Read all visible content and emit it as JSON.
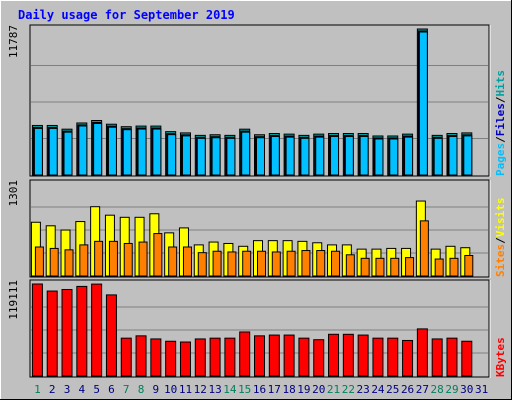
{
  "chart_data": {
    "type": "bar",
    "title": "Daily usage for September 2019",
    "categories": [
      "1",
      "2",
      "3",
      "4",
      "5",
      "6",
      "7",
      "8",
      "9",
      "10",
      "11",
      "12",
      "13",
      "14",
      "15",
      "16",
      "17",
      "18",
      "19",
      "20",
      "21",
      "22",
      "23",
      "24",
      "25",
      "26",
      "27",
      "28",
      "29",
      "30",
      "31"
    ],
    "weekend_days": [
      "1",
      "7",
      "8",
      "14",
      "15",
      "21",
      "22",
      "28",
      "29"
    ],
    "panels": [
      {
        "id": "top",
        "y_max_label": "11787",
        "ylim": [
          0,
          11787
        ],
        "series": [
          {
            "name": "Hits",
            "color": "#00a0a0",
            "values": [
              4000,
              4000,
              3700,
              4200,
              4400,
              4100,
              3900,
              3950,
              3950,
              3500,
              3400,
              3200,
              3250,
              3200,
              3700,
              3250,
              3350,
              3300,
              3200,
              3300,
              3350,
              3350,
              3350,
              3150,
              3150,
              3300,
              11787,
              3200,
              3350,
              3400,
              0
            ]
          },
          {
            "name": "Files",
            "color": "#0000c0",
            "values": [
              4000,
              4000,
              3700,
              4200,
              4400,
              4100,
              3900,
              3950,
              3950,
              3500,
              3400,
              3200,
              3250,
              3200,
              3700,
              3250,
              3350,
              3300,
              3200,
              3300,
              3350,
              3350,
              3350,
              3150,
              3150,
              3300,
              11787,
              3200,
              3350,
              3400,
              0
            ]
          },
          {
            "name": "Pages",
            "color": "#00c0ff",
            "values": [
              4000,
              4000,
              3700,
              4200,
              4400,
              4100,
              3900,
              3950,
              3950,
              3500,
              3400,
              3200,
              3250,
              3200,
              3700,
              3250,
              3350,
              3300,
              3200,
              3300,
              3350,
              3350,
              3350,
              3150,
              3150,
              3300,
              11787,
              3200,
              3350,
              3400,
              0
            ]
          }
        ],
        "separators": [
          "/",
          "/"
        ]
      },
      {
        "id": "middle",
        "y_max_label": "1301",
        "ylim": [
          0,
          1301
        ],
        "series": [
          {
            "name": "Visits",
            "color": "#ffff00",
            "values": [
              760,
              710,
              650,
              770,
              980,
              860,
              830,
              830,
              880,
              610,
              680,
              440,
              480,
              460,
              420,
              500,
              500,
              500,
              490,
              470,
              440,
              440,
              380,
              380,
              390,
              390,
              1060,
              380,
              420,
              400,
              0
            ]
          },
          {
            "name": "Sites",
            "color": "#ff8000",
            "values": [
              410,
              390,
              370,
              440,
              490,
              490,
              460,
              480,
              600,
              410,
              410,
              330,
              350,
              340,
              350,
              350,
              340,
              350,
              360,
              360,
              350,
              300,
              250,
              250,
              250,
              260,
              780,
              240,
              250,
              290,
              0
            ]
          }
        ],
        "separators": [
          "/"
        ]
      },
      {
        "id": "bottom",
        "y_max_label": "119111",
        "ylim": [
          0,
          119111
        ],
        "series": [
          {
            "name": "KBytes",
            "color": "#ff0000",
            "values": [
              119111,
              110000,
              112000,
              116000,
              119000,
              105000,
              49000,
              52000,
              48000,
              45000,
              44000,
              48000,
              49000,
              49000,
              57000,
              52000,
              53000,
              53000,
              49000,
              47000,
              54000,
              54000,
              53000,
              49000,
              49000,
              46000,
              61000,
              48000,
              49000,
              45000,
              0
            ]
          }
        ],
        "separators": []
      }
    ],
    "colors": {
      "background": "#c0c0c0",
      "plot_background": "#c0c0c0",
      "title_color": "#0000ff",
      "weekday_label": "#000080",
      "weekend_label": "#00805c",
      "gridline": "#808080"
    }
  }
}
